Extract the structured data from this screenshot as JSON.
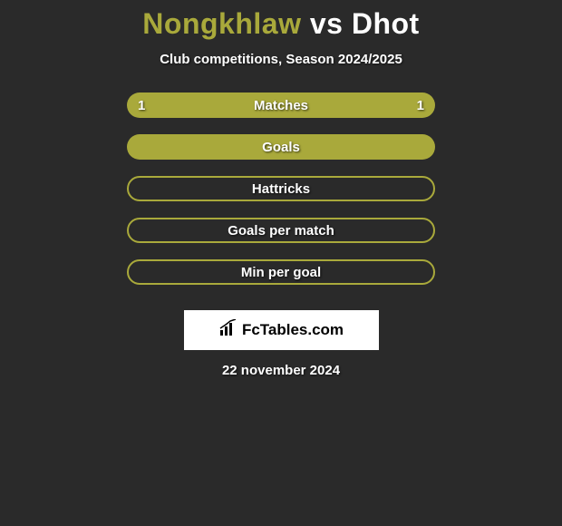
{
  "title": {
    "player1": "Nongkhlaw",
    "vs": "vs",
    "player2": "Dhot",
    "player1_color": "#a9a93b",
    "vs_color": "#ffffff",
    "player2_color": "#ffffff"
  },
  "subtitle": "Club competitions, Season 2024/2025",
  "colors": {
    "background": "#2a2a2a",
    "accent": "#a9a93b",
    "ellipse_light": "#f5f5f5",
    "ellipse_mid": "#d0d0d0",
    "text": "#ffffff"
  },
  "rows": [
    {
      "label": "Matches",
      "left_value": "1",
      "right_value": "1",
      "style": "filled",
      "show_ellipses": true,
      "ellipse_left_color": "#f5f5f5",
      "ellipse_right_color": "#f5f5f5"
    },
    {
      "label": "Goals",
      "left_value": "",
      "right_value": "",
      "style": "filled",
      "show_ellipses": true,
      "ellipse_left_color": "#d0d0d0",
      "ellipse_right_color": "#f5f5f5"
    },
    {
      "label": "Hattricks",
      "left_value": "",
      "right_value": "",
      "style": "outlined",
      "show_ellipses": false
    },
    {
      "label": "Goals per match",
      "left_value": "",
      "right_value": "",
      "style": "outlined",
      "show_ellipses": false
    },
    {
      "label": "Min per goal",
      "left_value": "",
      "right_value": "",
      "style": "outlined",
      "show_ellipses": false
    }
  ],
  "logo": {
    "text": "FcTables.com"
  },
  "date": "22 november 2024"
}
